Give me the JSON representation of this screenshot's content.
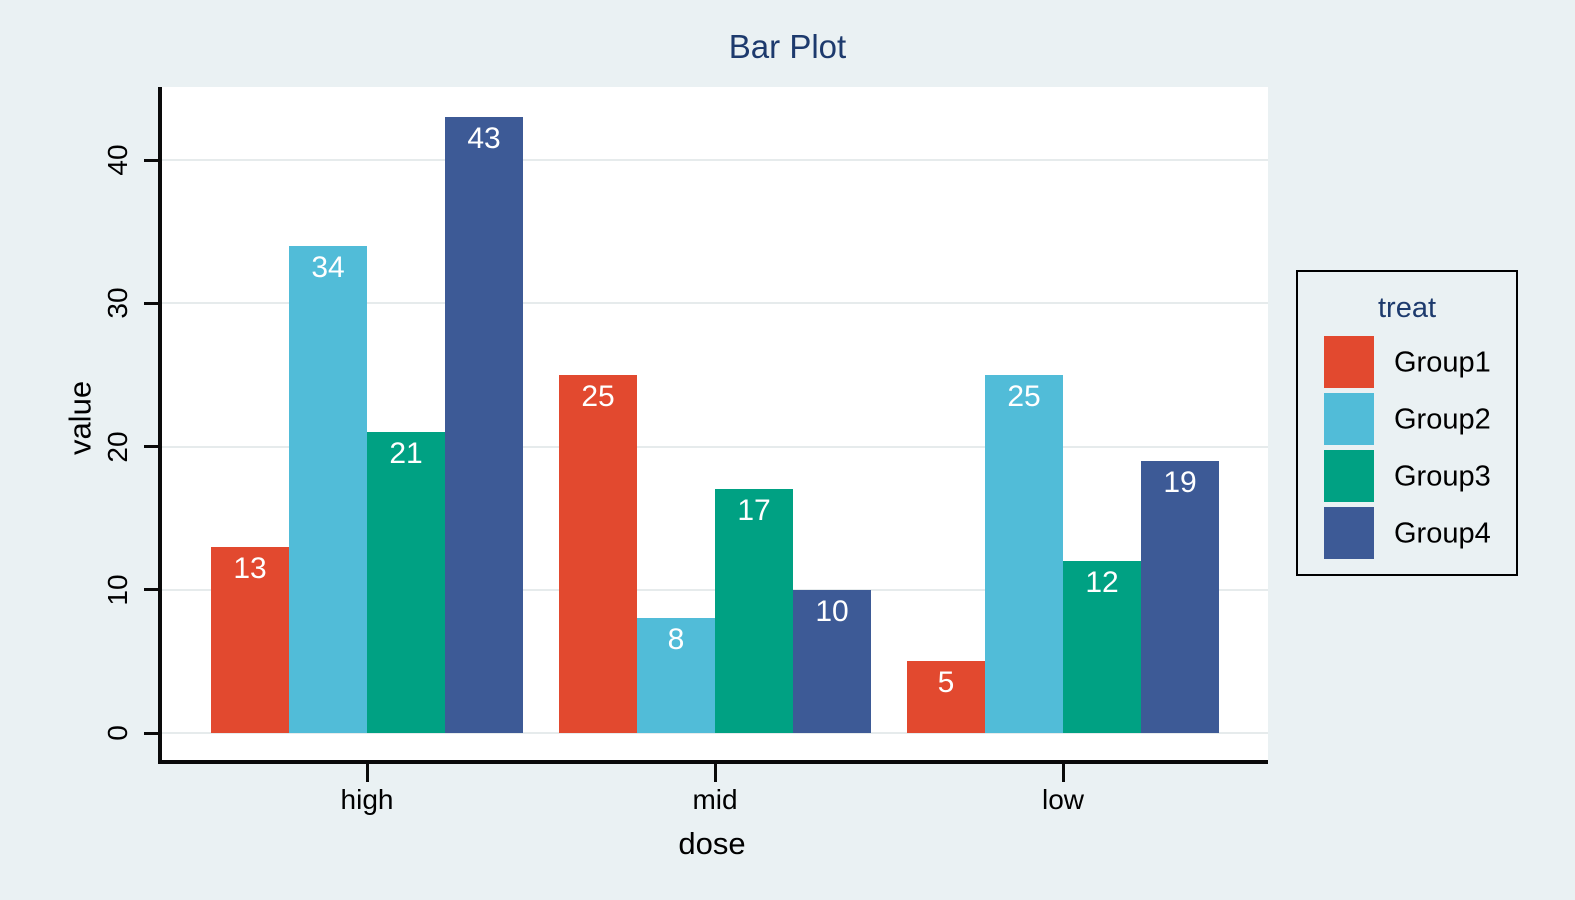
{
  "chart_data": {
    "type": "bar",
    "title": "Bar Plot",
    "xlabel": "dose",
    "ylabel": "value",
    "categories": [
      "high",
      "mid",
      "low"
    ],
    "series": [
      {
        "name": "Group1",
        "color": "#e2492f",
        "values": [
          13,
          25,
          5
        ]
      },
      {
        "name": "Group2",
        "color": "#51bcd8",
        "values": [
          34,
          8,
          25
        ]
      },
      {
        "name": "Group3",
        "color": "#00a183",
        "values": [
          21,
          17,
          12
        ]
      },
      {
        "name": "Group4",
        "color": "#3d5a96",
        "values": [
          43,
          10,
          19
        ]
      }
    ],
    "y_ticks": [
      0,
      10,
      20,
      30,
      40
    ],
    "ylim": [
      0,
      45
    ],
    "bar_value_labels": [
      [
        13,
        34,
        21,
        43
      ],
      [
        25,
        8,
        17,
        10
      ],
      [
        5,
        25,
        12,
        19
      ]
    ],
    "grid": true,
    "legend": {
      "title": "treat",
      "position": "right"
    },
    "colors": {
      "background": "#eaf1f3",
      "plot_background": "#ffffff",
      "gridline": "#e6ebec",
      "axis": "#0a0a0a",
      "heading": "#1d3a6d",
      "bar_label": "#ffffff"
    }
  }
}
